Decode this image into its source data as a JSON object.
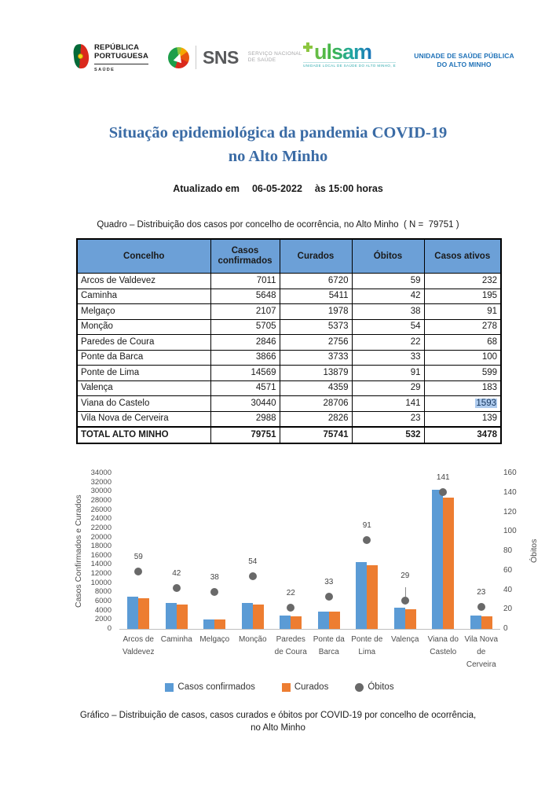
{
  "header": {
    "republica": {
      "line1": "REPÚBLICA",
      "line2": "PORTUGUESA",
      "sub": "SAÚDE"
    },
    "sns": {
      "acronym": "SNS",
      "sub_line1": "SERVIÇO NACIONAL",
      "sub_line2": "DE SAÚDE"
    },
    "ulsam": {
      "wordmark": "ulsam",
      "tagline": "UNIDADE LOCAL DE SAÚDE DO ALTO MINHO, EPE"
    },
    "usp": {
      "line1": "UNIDADE DE SAÚDE PÚBLICA",
      "line2": "DO ALTO MINHO",
      "color": "#1F72B8"
    }
  },
  "title": {
    "line1": "Situação epidemiológica da pandemia COVID-19",
    "line2": "no Alto Minho",
    "color": "#3A6BA5"
  },
  "updated": {
    "label": "Atualizado em",
    "date": "06-05-2022",
    "time": "às 15:00 horas"
  },
  "table": {
    "caption": "Quadro – Distribuição dos casos por concelho de ocorrência, no Alto Minho  ( N =  79751 )",
    "columns": [
      "Concelho",
      "Casos confirmados",
      "Curados",
      "Óbitos",
      "Casos ativos"
    ],
    "header_bg": "#6CA0D7",
    "rows": [
      [
        "Arcos de Valdevez",
        "7011",
        "6720",
        "59",
        "232"
      ],
      [
        "Caminha",
        "5648",
        "5411",
        "42",
        "195"
      ],
      [
        "Melgaço",
        "2107",
        "1978",
        "38",
        "91"
      ],
      [
        "Monção",
        "5705",
        "5373",
        "54",
        "278"
      ],
      [
        "Paredes de Coura",
        "2846",
        "2756",
        "22",
        "68"
      ],
      [
        "Ponte da Barca",
        "3866",
        "3733",
        "33",
        "100"
      ],
      [
        "Ponte de Lima",
        "14569",
        "13879",
        "91",
        "599"
      ],
      [
        "Valença",
        "4571",
        "4359",
        "29",
        "183"
      ],
      [
        "Viana do Castelo",
        "30440",
        "28706",
        "141",
        "1593"
      ],
      [
        "Vila Nova de Cerveira",
        "2988",
        "2826",
        "23",
        "139"
      ]
    ],
    "total_row": [
      "TOTAL ALTO MINHO",
      "79751",
      "75741",
      "532",
      "3478"
    ],
    "highlighted_cell": {
      "row": "Viana do Castelo",
      "column": "Casos ativos",
      "value": "1593",
      "highlight_bg": "#AECBEE",
      "highlight_text": "#17375E"
    }
  },
  "chart_data": {
    "type": "bar",
    "subtype": "grouped-bars-with-scatter-on-secondary-axis",
    "categories": [
      "Arcos de Valdevez",
      "Caminha",
      "Melgaço",
      "Monção",
      "Paredes de Coura",
      "Ponte da Barca",
      "Ponte de Lima",
      "Valença",
      "Viana do Castelo",
      "Vila Nova de Cerveira"
    ],
    "series": [
      {
        "name": "Casos confirmados",
        "type": "bar",
        "axis": "left",
        "color": "#5B9BD5",
        "values": [
          7011,
          5648,
          2107,
          5705,
          2846,
          3866,
          14569,
          4571,
          30440,
          2988
        ]
      },
      {
        "name": "Curados",
        "type": "bar",
        "axis": "left",
        "color": "#ED7D31",
        "values": [
          6720,
          5411,
          1978,
          5373,
          2756,
          3733,
          13879,
          4359,
          28706,
          2826
        ]
      },
      {
        "name": "Óbitos",
        "type": "scatter",
        "axis": "right",
        "color": "#696969",
        "values": [
          59,
          42,
          38,
          54,
          22,
          33,
          91,
          29,
          141,
          23
        ],
        "data_labels": true
      }
    ],
    "left_axis": {
      "label": "Casos Confirmados e Curados",
      "min": 0,
      "max": 34000,
      "step": 2000
    },
    "right_axis": {
      "label": "Óbitos",
      "min": 0,
      "max": 160,
      "step": 20
    },
    "legend_position": "bottom",
    "gridlines": false,
    "label_leader_lines": [
      "Valença"
    ]
  },
  "chart_caption": {
    "text": "Gráfico – Distribuição de casos, casos curados e óbitos por COVID-19 por concelho de ocorrência, no Alto Minho"
  }
}
